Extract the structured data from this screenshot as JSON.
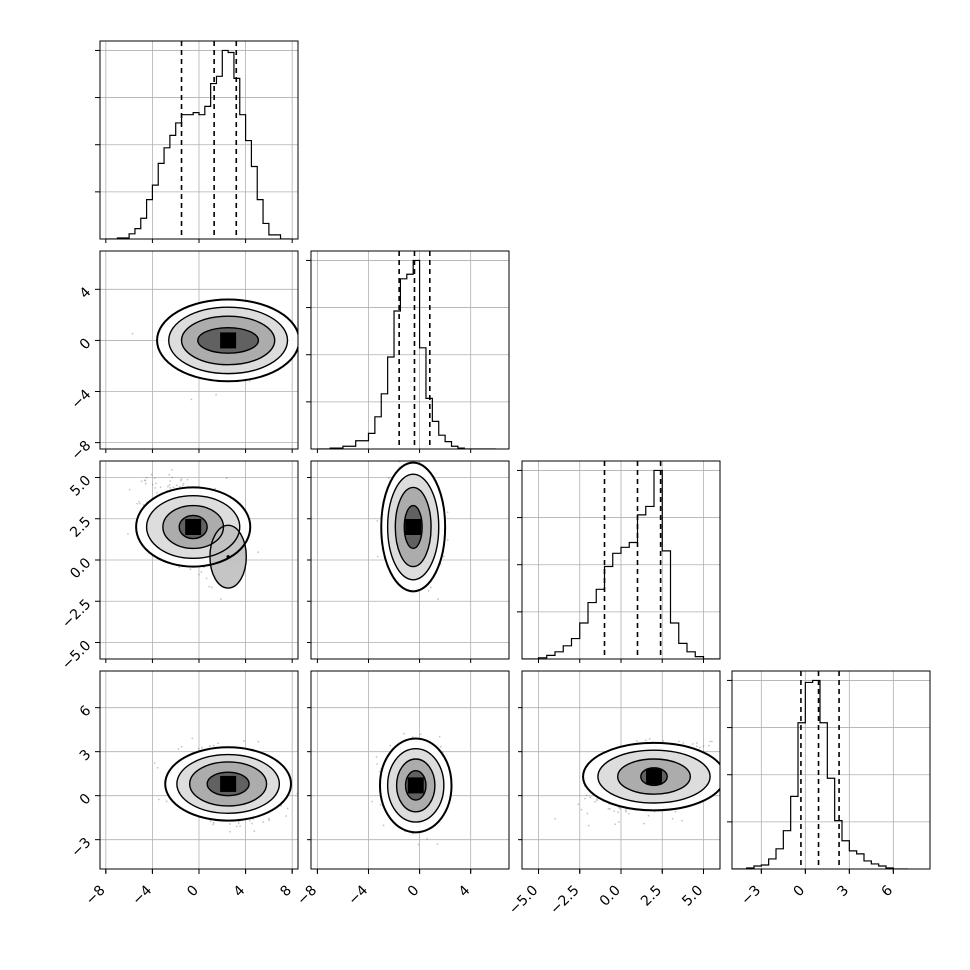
{
  "chart_data": {
    "type": "corner",
    "parameters": [
      {
        "range": [
          -8.5,
          8.5
        ],
        "ticks": [
          -8,
          -4,
          0,
          4,
          8
        ],
        "tick_labels": [
          "−8",
          "−4",
          "0",
          "4",
          "8"
        ],
        "hist_bins": [
          -8.0,
          -7.0,
          -6.0,
          -5.5,
          -5.0,
          -4.5,
          -4.0,
          -3.5,
          -3.0,
          -2.5,
          -2.0,
          -1.5,
          -1.0,
          -0.5,
          0.0,
          0.5,
          1.0,
          1.5,
          2.0,
          2.5,
          3.0,
          3.5,
          4.0,
          4.5,
          5.0,
          5.5,
          6.0,
          7.0,
          8.0
        ],
        "hist_counts": [
          0,
          1,
          5,
          10,
          20,
          38,
          52,
          73,
          88,
          100,
          112,
          120,
          120,
          122,
          120,
          128,
          150,
          157,
          182,
          180,
          155,
          120,
          95,
          70,
          38,
          15,
          4,
          0
        ],
        "quantiles": [
          -1.5,
          1.3,
          3.2
        ]
      },
      {
        "range": [
          -8.5,
          7.0
        ],
        "ticks": [
          -8,
          -4,
          0,
          4
        ],
        "tick_labels": [
          "−8",
          "−4",
          "0",
          "4"
        ],
        "hist_bins": [
          -8.0,
          -7.0,
          -6.0,
          -5.0,
          -4.0,
          -3.5,
          -3.0,
          -2.5,
          -2.0,
          -1.5,
          -1.0,
          -0.5,
          0.0,
          0.5,
          1.0,
          1.5,
          2.0,
          2.5,
          3.0,
          3.5,
          4.0,
          5.0,
          6.0
        ],
        "hist_counts": [
          0,
          1,
          3,
          9,
          17,
          35,
          60,
          100,
          150,
          185,
          190,
          205,
          110,
          55,
          30,
          15,
          8,
          3,
          1,
          0,
          0,
          0
        ],
        "quantiles": [
          -1.6,
          -0.4,
          0.8
        ]
      },
      {
        "range": [
          -6.0,
          6.0
        ],
        "ticks": [
          -5.0,
          -2.5,
          0.0,
          2.5,
          5.0
        ],
        "tick_labels": [
          "−5.0",
          "−2.5",
          "0.0",
          "2.5",
          "5.0"
        ],
        "hist_bins": [
          -6.0,
          -5.0,
          -4.5,
          -4.0,
          -3.5,
          -3.0,
          -2.5,
          -2.0,
          -1.5,
          -1.0,
          -0.5,
          0.0,
          0.5,
          1.0,
          1.5,
          2.0,
          2.5,
          3.0,
          3.5,
          4.0,
          4.5,
          5.0,
          6.0
        ],
        "hist_counts": [
          0,
          1,
          3,
          6,
          11,
          17,
          30,
          47,
          58,
          77,
          88,
          93,
          97,
          120,
          127,
          157,
          90,
          30,
          13,
          6,
          2,
          0
        ],
        "quantiles": [
          -1.0,
          1.0,
          2.4
        ]
      },
      {
        "range": [
          -5.0,
          8.5
        ],
        "ticks": [
          -3,
          0,
          3,
          6
        ],
        "tick_labels": [
          "−3",
          "0",
          "3",
          "6"
        ],
        "hist_bins": [
          -5.0,
          -4.0,
          -3.5,
          -3.0,
          -2.5,
          -2.0,
          -1.5,
          -1.0,
          -0.5,
          0.0,
          0.5,
          1.0,
          1.5,
          2.0,
          2.5,
          3.0,
          3.5,
          4.0,
          4.5,
          5.0,
          5.5,
          6.0,
          6.5,
          7.0
        ],
        "hist_counts": [
          0,
          1,
          3,
          4,
          10,
          20,
          38,
          72,
          145,
          185,
          187,
          145,
          90,
          48,
          28,
          18,
          15,
          8,
          5,
          3,
          1,
          0,
          0
        ],
        "quantiles": [
          -0.3,
          0.9,
          2.3
        ]
      }
    ],
    "pairs": [
      {
        "x": 0,
        "y": 1,
        "mode": [
          2.5,
          0.0
        ],
        "cov": [
          [
            7.5,
            0.0
          ],
          [
            0.0,
            2.2
          ]
        ],
        "contours": [
          [
            2.6,
            1.0
          ],
          [
            4.0,
            1.9
          ],
          [
            5.1,
            2.6
          ],
          [
            6.1,
            3.2
          ]
        ],
        "scatter_n": 650
      },
      {
        "x": 0,
        "y": 2,
        "mode": [
          -0.5,
          2.0
        ],
        "second_mode": [
          2.5,
          0.2
        ],
        "cov": [
          [
            5.5,
            -2.0
          ],
          [
            -2.0,
            3.2
          ]
        ],
        "contours": [
          [
            1.2,
            0.7
          ],
          [
            2.6,
            1.3
          ],
          [
            4.0,
            1.9
          ],
          [
            4.9,
            2.4
          ]
        ],
        "scatter_n": 650
      },
      {
        "x": 1,
        "y": 2,
        "mode": [
          -0.5,
          2.0
        ],
        "cov": [
          [
            1.6,
            -0.4
          ],
          [
            -0.4,
            3.4
          ]
        ],
        "contours": [
          [
            0.7,
            1.3
          ],
          [
            1.4,
            2.4
          ],
          [
            2.0,
            3.2
          ],
          [
            2.5,
            3.9
          ]
        ],
        "scatter_n": 650
      },
      {
        "x": 0,
        "y": 3,
        "mode": [
          2.5,
          0.8
        ],
        "cov": [
          [
            7.0,
            -1.0
          ],
          [
            -1.0,
            2.4
          ]
        ],
        "contours": [
          [
            1.8,
            0.8
          ],
          [
            3.3,
            1.5
          ],
          [
            4.4,
            2.0
          ],
          [
            5.4,
            2.5
          ]
        ],
        "scatter_n": 650
      },
      {
        "x": 1,
        "y": 3,
        "mode": [
          -0.3,
          0.7
        ],
        "cov": [
          [
            1.9,
            0.0
          ],
          [
            0.0,
            2.5
          ]
        ],
        "contours": [
          [
            0.8,
            1.0
          ],
          [
            1.5,
            1.8
          ],
          [
            2.2,
            2.5
          ],
          [
            2.8,
            3.2
          ]
        ],
        "scatter_n": 650
      },
      {
        "x": 2,
        "y": 3,
        "mode": [
          2.0,
          1.3
        ],
        "cov": [
          [
            5.0,
            1.2
          ],
          [
            1.2,
            2.0
          ]
        ],
        "contours": [
          [
            0.8,
            0.6
          ],
          [
            2.2,
            1.2
          ],
          [
            3.4,
            1.8
          ],
          [
            4.3,
            2.3
          ]
        ],
        "scatter_n": 650
      }
    ],
    "grid": true,
    "colors": {
      "line": "#000000",
      "grid": "#b0b0b0",
      "scatter": "#7f7f7f",
      "fill_dark": "#000000"
    }
  }
}
